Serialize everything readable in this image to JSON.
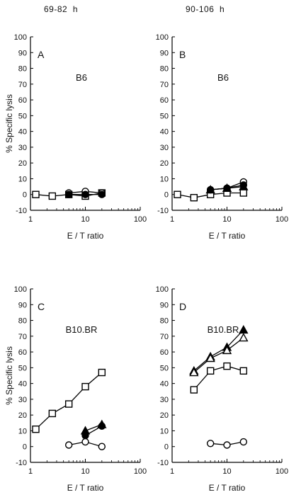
{
  "column_headers": [
    "69-82  h",
    "90-106  h"
  ],
  "chart_data": [
    {
      "type": "line",
      "panel_letter": "A",
      "strain_label": "B6",
      "ylabel": "% Specific lysis",
      "xlabel": "E / T ratio",
      "xscale": "log",
      "xlim": [
        1,
        100
      ],
      "ylim": [
        -10,
        100
      ],
      "xticks": [
        1,
        10,
        100
      ],
      "yticks": [
        -10,
        0,
        10,
        20,
        30,
        40,
        50,
        60,
        70,
        80,
        90,
        100
      ],
      "series": [
        {
          "marker": "open-square",
          "x": [
            1.25,
            2.5,
            5,
            10,
            20
          ],
          "y": [
            0,
            -1,
            0,
            -1,
            1
          ]
        },
        {
          "marker": "open-circle",
          "x": [
            5,
            10,
            20
          ],
          "y": [
            1,
            2,
            1
          ]
        },
        {
          "marker": "filled-circle",
          "x": [
            5,
            10,
            20
          ],
          "y": [
            0,
            0,
            0
          ]
        }
      ]
    },
    {
      "type": "line",
      "panel_letter": "B",
      "strain_label": "B6",
      "ylabel": "",
      "xlabel": "E / T ratio",
      "xscale": "log",
      "xlim": [
        1,
        100
      ],
      "ylim": [
        -10,
        100
      ],
      "xticks": [
        1,
        10,
        100
      ],
      "yticks": [
        -10,
        0,
        10,
        20,
        30,
        40,
        50,
        60,
        70,
        80,
        90,
        100
      ],
      "series": [
        {
          "marker": "open-square",
          "x": [
            1.25,
            2.5,
            5,
            10,
            20
          ],
          "y": [
            0,
            -2,
            0,
            1,
            1
          ]
        },
        {
          "marker": "open-circle",
          "x": [
            5,
            10,
            20
          ],
          "y": [
            3,
            4,
            8
          ]
        },
        {
          "marker": "filled-circle",
          "x": [
            5,
            10,
            20
          ],
          "y": [
            3,
            4,
            6
          ]
        },
        {
          "marker": "filled-triangle",
          "x": [
            5,
            10,
            20
          ],
          "y": [
            3,
            4,
            5
          ]
        }
      ]
    },
    {
      "type": "line",
      "panel_letter": "C",
      "strain_label": "B10.BR",
      "ylabel": "% Specific lysis",
      "xlabel": "E / T ratio",
      "xscale": "log",
      "xlim": [
        1,
        100
      ],
      "ylim": [
        -10,
        100
      ],
      "xticks": [
        1,
        10,
        100
      ],
      "yticks": [
        -10,
        0,
        10,
        20,
        30,
        40,
        50,
        60,
        70,
        80,
        90,
        100
      ],
      "series": [
        {
          "marker": "open-square",
          "x": [
            1.25,
            2.5,
            5,
            10,
            20
          ],
          "y": [
            11,
            21,
            27,
            38,
            47
          ]
        },
        {
          "marker": "filled-triangle",
          "x": [
            10,
            20
          ],
          "y": [
            10,
            14
          ]
        },
        {
          "marker": "filled-circle",
          "x": [
            10,
            20
          ],
          "y": [
            7,
            13
          ]
        },
        {
          "marker": "open-circle",
          "x": [
            5,
            10,
            20
          ],
          "y": [
            1,
            3,
            0
          ]
        }
      ]
    },
    {
      "type": "line",
      "panel_letter": "D",
      "strain_label": "B10.BR",
      "ylabel": "",
      "xlabel": "E / T ratio",
      "xscale": "log",
      "xlim": [
        1,
        100
      ],
      "ylim": [
        -10,
        100
      ],
      "xticks": [
        1,
        10,
        100
      ],
      "yticks": [
        -10,
        0,
        10,
        20,
        30,
        40,
        50,
        60,
        70,
        80,
        90,
        100
      ],
      "series": [
        {
          "marker": "filled-triangle",
          "x": [
            2.5,
            5,
            10,
            20
          ],
          "y": [
            48,
            57,
            63,
            74
          ]
        },
        {
          "marker": "open-triangle",
          "x": [
            2.5,
            5,
            10,
            20
          ],
          "y": [
            47,
            56,
            61,
            69
          ]
        },
        {
          "marker": "open-square",
          "x": [
            2.5,
            5,
            10,
            20
          ],
          "y": [
            36,
            48,
            51,
            48
          ]
        },
        {
          "marker": "open-circle",
          "x": [
            5,
            10,
            20
          ],
          "y": [
            2,
            1,
            3
          ]
        }
      ]
    }
  ]
}
